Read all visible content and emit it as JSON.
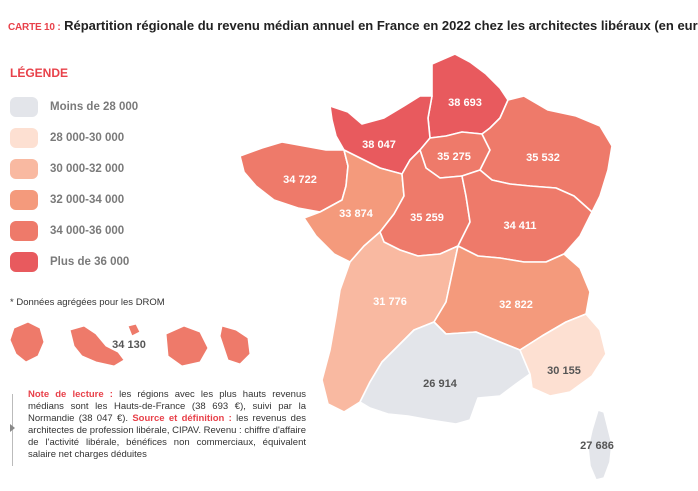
{
  "title": {
    "tag": "CARTE 10 :",
    "text": " Répartition régionale du revenu médian annuel en France en 2022 chez les architectes libéraux (en euros)"
  },
  "legend": {
    "title": "LÉGENDE",
    "items": [
      {
        "label": "Moins de 28 000",
        "color": "#e3e5ea"
      },
      {
        "label": "28 000-30 000",
        "color": "#fde0d2"
      },
      {
        "label": "30 000-32 000",
        "color": "#f9b9a1"
      },
      {
        "label": "32 000-34 000",
        "color": "#f49a7c"
      },
      {
        "label": "34 000-36 000",
        "color": "#ee7a6a"
      },
      {
        "label": "Plus de 36 000",
        "color": "#e85a5e"
      }
    ]
  },
  "drom_note": "* Données agrégées pour les DROM",
  "regions": {
    "hauts_de_france": "38 693",
    "normandie": "38 047",
    "ile_de_france": "35 275",
    "grand_est": "35 532",
    "bretagne": "34 722",
    "pays_de_la_loire": "33 874",
    "centre_val_de_loire": "35 259",
    "bourgogne_franche_comte": "34 411",
    "nouvelle_aquitaine": "31 776",
    "auvergne_rhone_alpes": "32 822",
    "occitanie": "26 914",
    "paca": "30 155",
    "corse": "27 686",
    "drom": "34 130"
  },
  "reading_note": {
    "label1": "Note de lecture :",
    "text1": " les régions avec les plus hauts revenus médians sont les Hauts-de-France (38 693 €), suivi par la Normandie (38 047 €). ",
    "label2": "Source et définition :",
    "text2": " les revenus des architectes de profession libérale, CIPAV. Revenu : chiffre d'affaire de l'activité libérale, bénéfices non commerciaux, équivalent salaire net charges déduites"
  }
}
